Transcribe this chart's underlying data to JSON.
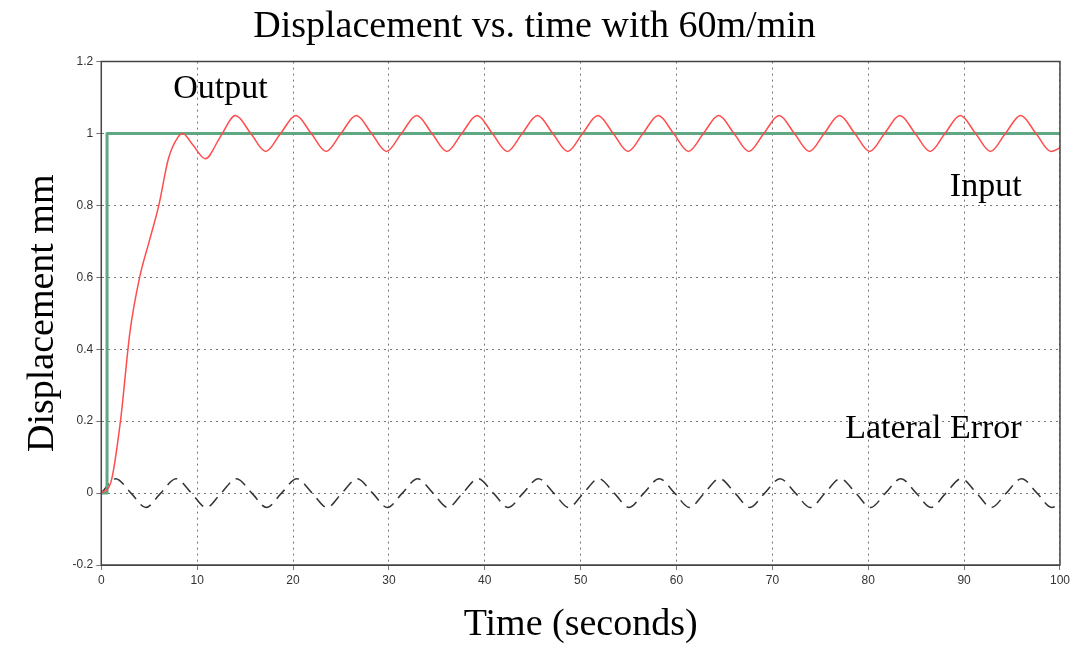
{
  "chart_data": {
    "type": "line",
    "title": "Displacement vs. time with 60m/min",
    "xlabel": "Time (seconds)",
    "ylabel": "Displacement mm",
    "xlim": [
      0,
      100
    ],
    "xticks": [
      0,
      10,
      20,
      30,
      40,
      50,
      60,
      70,
      80,
      90,
      100
    ],
    "ylim": [
      -0.2,
      1.2
    ],
    "yticks": [
      -0.2,
      0,
      0.2,
      0.4,
      0.6,
      0.8,
      1,
      1.2
    ],
    "grid": true,
    "legend": false,
    "marker": "none",
    "series": [
      {
        "name": "Output",
        "color": "#ff4d4d",
        "line_style": "solid",
        "x": [
          0,
          1,
          2,
          3,
          4,
          5,
          6,
          7,
          8,
          8.5,
          9.5,
          10.85,
          12.4,
          14,
          15.6,
          17.15,
          18.7,
          20.3,
          21.9,
          23.45,
          25,
          26.6,
          28.2,
          29.75,
          31.3,
          32.9,
          34.5,
          36.05,
          37.6,
          39.2,
          40.8,
          42.35,
          43.9,
          45.5,
          47.1,
          48.65,
          50.2,
          51.8,
          53.4,
          54.95,
          56.5,
          58.1,
          59.7,
          61.25,
          62.8,
          64.4,
          66,
          67.55,
          69.1,
          70.7,
          72.3,
          73.85,
          75.4,
          77,
          78.6,
          80.15,
          81.7,
          83.3,
          84.9,
          86.45,
          88,
          89.6,
          91.2,
          92.75,
          94.3,
          95.9,
          97.5,
          99.05,
          100
        ],
        "values": [
          0,
          0.03,
          0.2,
          0.45,
          0.6,
          0.7,
          0.8,
          0.93,
          0.99,
          1,
          0.97,
          0.93,
          0.99,
          1.05,
          1,
          0.95,
          1,
          1.05,
          1,
          0.95,
          1,
          1.05,
          1,
          0.95,
          1,
          1.05,
          1,
          0.95,
          1,
          1.05,
          1,
          0.95,
          1,
          1.05,
          1,
          0.95,
          1,
          1.05,
          1,
          0.95,
          1,
          1.05,
          1,
          0.95,
          1,
          1.05,
          1,
          0.95,
          1,
          1.05,
          1,
          0.95,
          1,
          1.05,
          1,
          0.95,
          1,
          1.05,
          1,
          0.95,
          1,
          1.05,
          1,
          0.95,
          1,
          1.05,
          1,
          0.95,
          0.96
        ]
      },
      {
        "name": "Input",
        "color": "#5fa883",
        "line_style": "solid",
        "x": [
          0,
          0.6,
          0.6,
          100
        ],
        "values": [
          0,
          0,
          1,
          1
        ]
      },
      {
        "name": "Lateral Error",
        "color": "#333333",
        "line_style": "dashed",
        "x": [
          0,
          1.5,
          3.1,
          4.65,
          6.2,
          7.8,
          9.4,
          10.95,
          12.5,
          14.1,
          15.7,
          17.25,
          18.8,
          20.4,
          22,
          23.55,
          25.1,
          26.7,
          28.3,
          29.85,
          31.4,
          33,
          34.6,
          36.15,
          37.7,
          39.3,
          40.9,
          42.45,
          44,
          45.6,
          47.2,
          48.75,
          50.3,
          51.9,
          53.5,
          55.05,
          56.6,
          58.2,
          59.8,
          61.35,
          62.9,
          64.5,
          66.1,
          67.65,
          69.2,
          70.8,
          72.4,
          73.95,
          75.5,
          77.1,
          78.7,
          80.25,
          81.8,
          83.4,
          85,
          86.55,
          88.1,
          89.7,
          91.3,
          92.85,
          94.4,
          96,
          97.6,
          99.15,
          100
        ],
        "values": [
          0,
          0.04,
          0,
          -0.04,
          0,
          0.04,
          0,
          -0.04,
          0,
          0.04,
          0,
          -0.04,
          0,
          0.04,
          0,
          -0.04,
          0,
          0.04,
          0,
          -0.04,
          0,
          0.04,
          0,
          -0.04,
          0,
          0.04,
          0,
          -0.04,
          0,
          0.04,
          0,
          -0.04,
          0,
          0.04,
          0,
          -0.04,
          0,
          0.04,
          0,
          -0.04,
          0,
          0.04,
          0,
          -0.04,
          0,
          0.04,
          0,
          -0.04,
          0,
          0.04,
          0,
          -0.04,
          0,
          0.04,
          0,
          -0.04,
          0,
          0.04,
          0,
          -0.04,
          0,
          0.04,
          0,
          -0.04,
          -0.03
        ]
      }
    ]
  }
}
